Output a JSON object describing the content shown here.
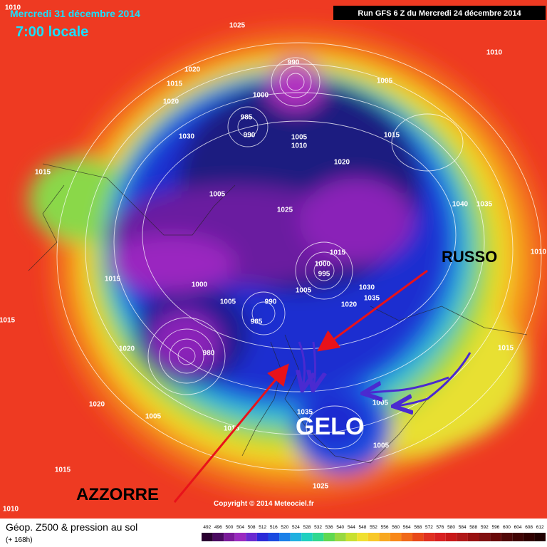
{
  "header": {
    "date": "Mercredi 31 décembre 2014",
    "time": "7:00 locale",
    "run": "Run GFS 6 Z du Mercredi 24 décembre 2014"
  },
  "map": {
    "isobar_labels": [
      "1010",
      "1025",
      "1010",
      "990",
      "1020",
      "1015",
      "1005",
      "1000",
      "1020",
      "985",
      "1005",
      "990",
      "1030",
      "1015",
      "1010",
      "1020",
      "1015",
      "1005",
      "1040",
      "1035",
      "1025",
      "1010",
      "1015",
      "1000",
      "995",
      "1015",
      "1000",
      "1005",
      "1030",
      "1035",
      "1005",
      "1020",
      "990",
      "985",
      "1020",
      "980",
      "1015",
      "1020",
      "1005",
      "1035",
      "1005",
      "1015",
      "1005",
      "1015",
      "1025",
      "1010",
      "1015"
    ],
    "annotations": [
      "RUSSO",
      "GELO",
      "AZZORRE"
    ],
    "copyright": "Copyright © 2014 Meteociel.fr"
  },
  "legend": {
    "title": "Géop. Z500 & pression au sol",
    "subtitle": "(+ 168h)",
    "scale": [
      492,
      496,
      500,
      504,
      508,
      512,
      516,
      520,
      524,
      528,
      532,
      536,
      540,
      544,
      548,
      552,
      556,
      560,
      564,
      568,
      572,
      576,
      580,
      584,
      588,
      592,
      596,
      600,
      604,
      608,
      612
    ]
  }
}
